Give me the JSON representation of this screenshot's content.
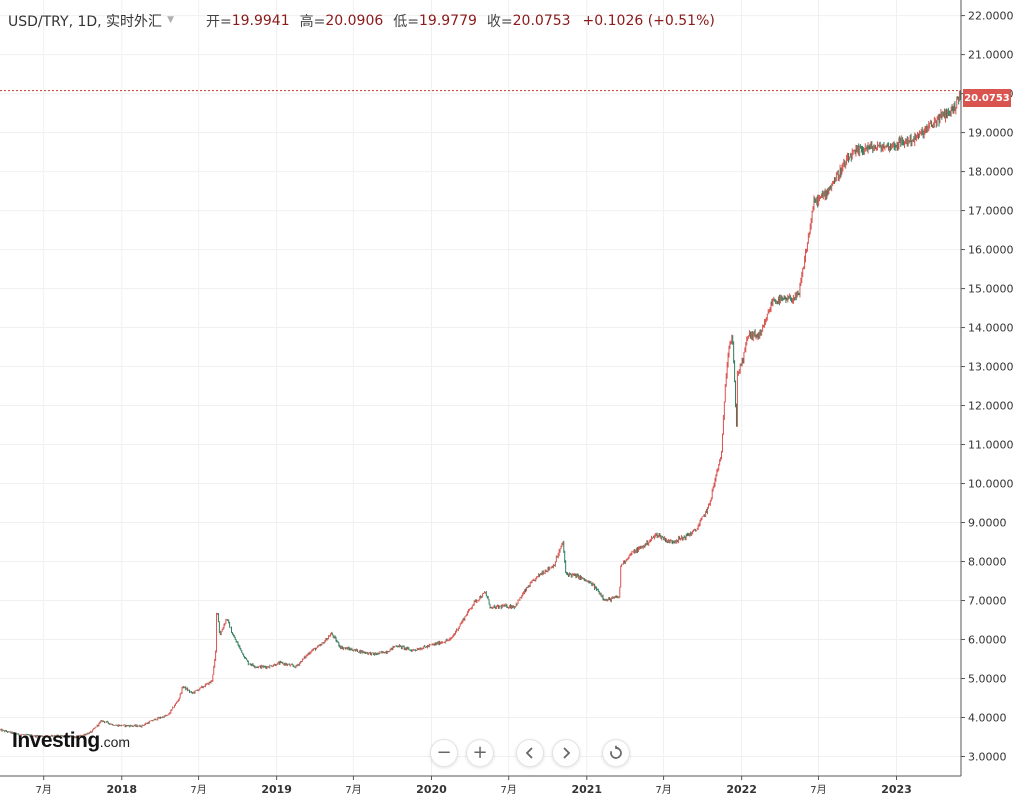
{
  "legend": {
    "symbol": "USD/TRY, 1D, 实时外汇",
    "open_label": "开=",
    "open": "19.9941",
    "high_label": "高=",
    "high": "20.0906",
    "low_label": "低=",
    "low": "19.9779",
    "close_label": "收=",
    "close": "20.0753",
    "change": "+0.1026 (+0.51%)"
  },
  "price_tag": "20.0753",
  "logo": {
    "brand": "Investing",
    "suffix": ".com"
  },
  "controls": [
    "zoom-out",
    "zoom-in",
    "scroll-left",
    "scroll-right",
    "reset"
  ],
  "colors": {
    "up": "#d9534f",
    "down": "#2f7d5b",
    "grid": "#f0f0f0",
    "price_line": "#c0392b"
  },
  "chart_data": {
    "type": "candlestick",
    "title": "",
    "y_ticks": [
      "3.0000",
      "4.0000",
      "5.0000",
      "6.0000",
      "7.0000",
      "8.0000",
      "9.0000",
      "10.0000",
      "11.0000",
      "12.0000",
      "13.0000",
      "14.0000",
      "15.0000",
      "16.0000",
      "17.0000",
      "18.0000",
      "19.0000",
      "20.0000",
      "21.0000",
      "22.0000"
    ],
    "ylim": [
      2.5,
      22.4
    ],
    "x_ticks": [
      {
        "date": "2017-07-01",
        "label": "7月",
        "bold": false
      },
      {
        "date": "2018-01-01",
        "label": "2018",
        "bold": true
      },
      {
        "date": "2018-07-01",
        "label": "7月",
        "bold": false
      },
      {
        "date": "2019-01-01",
        "label": "2019",
        "bold": true
      },
      {
        "date": "2019-07-01",
        "label": "7月",
        "bold": false
      },
      {
        "date": "2020-01-01",
        "label": "2020",
        "bold": true
      },
      {
        "date": "2020-07-01",
        "label": "7月",
        "bold": false
      },
      {
        "date": "2021-01-01",
        "label": "2021",
        "bold": true
      },
      {
        "date": "2021-07-01",
        "label": "7月",
        "bold": false
      },
      {
        "date": "2022-01-01",
        "label": "2022",
        "bold": true
      },
      {
        "date": "2022-07-01",
        "label": "7月",
        "bold": false
      },
      {
        "date": "2023-01-01",
        "label": "2023",
        "bold": true
      }
    ],
    "xlim": [
      "2017-03-20",
      "2023-06-02"
    ],
    "last_close": 20.0753,
    "grid": true,
    "series": [
      {
        "date": [
          "2017-03-20",
          "2017-05-01",
          "2017-06-15",
          "2017-08-01",
          "2017-09-15",
          "2017-10-20",
          "2017-11-15",
          "2017-12-15",
          "2018-01-15",
          "2018-02-15",
          "2018-03-20",
          "2018-04-20",
          "2018-05-15",
          "2018-05-25",
          "2018-06-15",
          "2018-07-10",
          "2018-08-01",
          "2018-08-10",
          "2018-08-13",
          "2018-08-20",
          "2018-09-05",
          "2018-09-20",
          "2018-10-10",
          "2018-10-25",
          "2018-11-15",
          "2018-12-10",
          "2019-01-10",
          "2019-02-15",
          "2019-03-22",
          "2019-04-15",
          "2019-05-10",
          "2019-06-01",
          "2019-07-15",
          "2019-08-20",
          "2019-09-20",
          "2019-10-10",
          "2019-11-15",
          "2019-12-15",
          "2020-01-15",
          "2020-02-15",
          "2020-03-15",
          "2020-04-10",
          "2020-05-07",
          "2020-05-20",
          "2020-06-15",
          "2020-07-15",
          "2020-08-15",
          "2020-09-15",
          "2020-10-15",
          "2020-11-06",
          "2020-11-12",
          "2020-12-15",
          "2021-01-15",
          "2021-02-15",
          "2021-03-19",
          "2021-03-22",
          "2021-04-15",
          "2021-05-15",
          "2021-06-15",
          "2021-07-15",
          "2021-08-15",
          "2021-09-15",
          "2021-10-15",
          "2021-11-15",
          "2021-11-23",
          "2021-12-01",
          "2021-12-10",
          "2021-12-20",
          "2021-12-22",
          "2022-01-05",
          "2022-01-15",
          "2022-02-15",
          "2022-03-15",
          "2022-04-15",
          "2022-05-15",
          "2022-06-10",
          "2022-06-20",
          "2022-07-15",
          "2022-08-15",
          "2022-09-15",
          "2022-10-15",
          "2022-11-15",
          "2022-12-15",
          "2023-01-15",
          "2023-02-15",
          "2023-03-15",
          "2023-04-15",
          "2023-05-15",
          "2023-05-28",
          "2023-06-02"
        ],
        "close": [
          3.68,
          3.57,
          3.52,
          3.54,
          3.49,
          3.62,
          3.92,
          3.8,
          3.79,
          3.78,
          3.95,
          4.06,
          4.47,
          4.8,
          4.62,
          4.78,
          4.93,
          5.6,
          6.9,
          6.1,
          6.55,
          6.1,
          5.7,
          5.4,
          5.3,
          5.3,
          5.4,
          5.3,
          5.7,
          5.85,
          6.15,
          5.8,
          5.7,
          5.62,
          5.7,
          5.85,
          5.72,
          5.8,
          5.9,
          6.0,
          6.5,
          6.95,
          7.2,
          6.8,
          6.85,
          6.85,
          7.35,
          7.7,
          7.9,
          8.5,
          7.7,
          7.6,
          7.4,
          7.0,
          7.1,
          7.9,
          8.2,
          8.4,
          8.7,
          8.5,
          8.6,
          8.8,
          9.4,
          10.8,
          12.5,
          13.5,
          13.8,
          11.5,
          12.8,
          13.2,
          13.8,
          13.8,
          14.7,
          14.7,
          14.8,
          16.5,
          17.2,
          17.4,
          17.9,
          18.4,
          18.6,
          18.62,
          18.65,
          18.75,
          18.85,
          19.1,
          19.4,
          19.6,
          19.9,
          20.08
        ]
      }
    ]
  }
}
